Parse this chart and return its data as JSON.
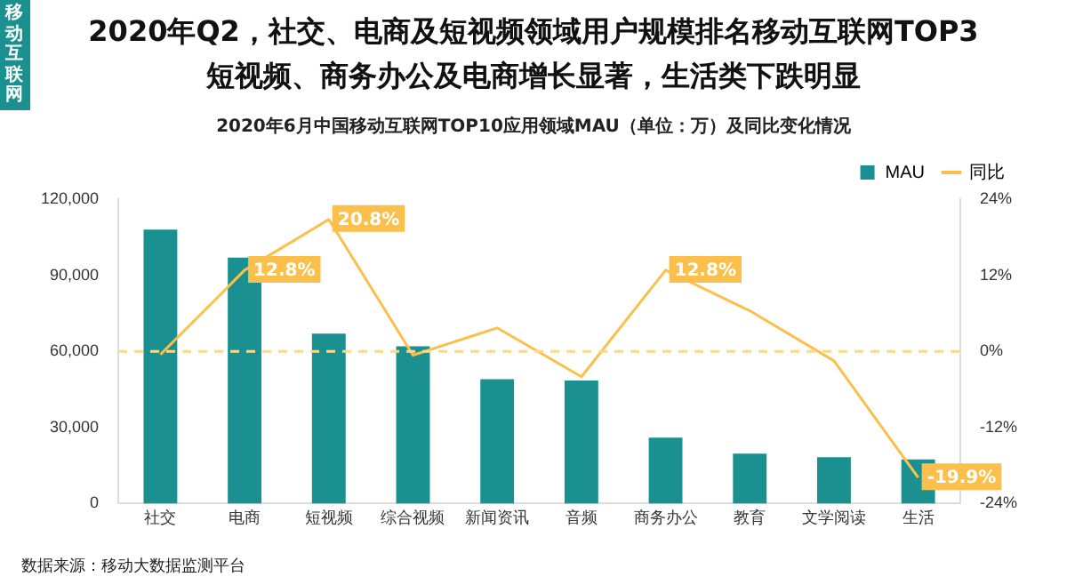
{
  "chart_data": {
    "type": "bar",
    "title": "2020年Q2，社交、电商及短视频领域用户规模排名移动互联网TOP3",
    "subtitle": "短视频、商务办公及电商增长显著，生活类下跌明显",
    "annotations": [
      "移动互联网",
      "2020年6月中国移动互联网TOP10应用领域MAU（单位：万）及同比变化情况",
      "数据来源：移动大数据监测平台"
    ],
    "categories": [
      "社交",
      "电商",
      "短视频",
      "综合视频",
      "新闻资讯",
      "音频",
      "商务办公",
      "教育",
      "文学阅读",
      "生活"
    ],
    "series": [
      {
        "name": "MAU",
        "color": "#1a9190",
        "values": [
          108000,
          97000,
          67000,
          62000,
          49000,
          48500,
          26000,
          19700,
          18300,
          17400
        ]
      },
      {
        "name": "同比",
        "type": "line",
        "axis": "y2",
        "color": "#fbc04b",
        "marker": "none",
        "values": [
          -0.5,
          12.8,
          20.8,
          -0.6,
          3.7,
          -4.0,
          12.8,
          6.4,
          -1.5,
          -19.9
        ],
        "value_labels": [
          null,
          "12.8%",
          "20.8%",
          null,
          null,
          null,
          "12.8%",
          null,
          null,
          "-19.9%"
        ]
      }
    ],
    "ylim": [
      0,
      120000
    ],
    "yticks": [
      0,
      {
        "value": 30000,
        "label": "30,000"
      },
      {
        "value": 60000,
        "label": "60,000"
      },
      {
        "value": 90000,
        "label": "90,000"
      },
      {
        "value": 120000,
        "label": "120,000"
      }
    ],
    "y2lim": [
      -24,
      24
    ],
    "y2ticks": [
      {
        "value": -24,
        "label": "-24%"
      },
      {
        "value": -12,
        "label": "-12%"
      },
      {
        "value": 0,
        "label": "0%"
      },
      {
        "value": 12,
        "label": "12%"
      },
      {
        "value": 24,
        "label": "24%"
      }
    ],
    "ref_lines": [
      {
        "axis": "y2",
        "value": 0,
        "color": "#fcd98a",
        "line_style": "dashed"
      }
    ],
    "grid": false,
    "legend": "top right"
  }
}
